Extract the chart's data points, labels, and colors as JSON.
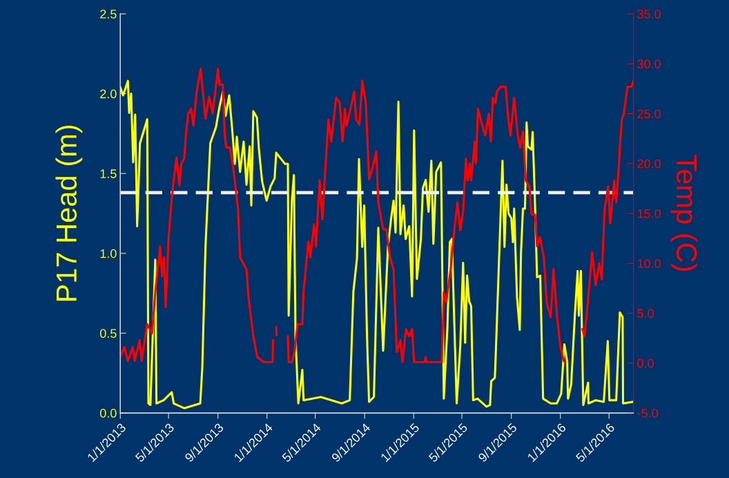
{
  "chart_data": {
    "type": "line",
    "ylabel": "P17 Head (m)",
    "y2label": "Temp (C)",
    "xlim": [
      "2013-01-01",
      "2016-07-01"
    ],
    "xticks": [
      {
        "value": "2013-01-01",
        "label": "1/1/2013"
      },
      {
        "value": "2013-05-01",
        "label": "5/1/2013"
      },
      {
        "value": "2013-09-01",
        "label": "9/1/2013"
      },
      {
        "value": "2014-01-01",
        "label": "1/1/2014"
      },
      {
        "value": "2014-05-01",
        "label": "5/1/2014"
      },
      {
        "value": "2014-09-01",
        "label": "9/1/2014"
      },
      {
        "value": "2015-01-01",
        "label": "1/1/2015"
      },
      {
        "value": "2015-05-01",
        "label": "5/1/2015"
      },
      {
        "value": "2015-09-01",
        "label": "9/1/2015"
      },
      {
        "value": "2016-01-01",
        "label": "1/1/2016"
      },
      {
        "value": "2016-05-01",
        "label": "5/1/2016"
      }
    ],
    "ylim": [
      0,
      2.5
    ],
    "yticks": [
      {
        "value": 0,
        "label": "0.0"
      },
      {
        "value": 0.5,
        "label": "0.5"
      },
      {
        "value": 1,
        "label": "1.0"
      },
      {
        "value": 1.5,
        "label": "1.5"
      },
      {
        "value": 2,
        "label": "2.0"
      },
      {
        "value": 2.5,
        "label": "2.5"
      }
    ],
    "y2lim": [
      -5,
      35
    ],
    "y2ticks": [
      {
        "value": -5,
        "label": "-5.0"
      },
      {
        "value": 0,
        "label": "0.0"
      },
      {
        "value": 5,
        "label": "5.0"
      },
      {
        "value": 10,
        "label": "10.0"
      },
      {
        "value": 15,
        "label": "15.0"
      },
      {
        "value": 20,
        "label": "20.0"
      },
      {
        "value": 25,
        "label": "25.0"
      },
      {
        "value": 30,
        "label": "30.0"
      },
      {
        "value": 35,
        "label": "35.0"
      }
    ],
    "grid": false,
    "marker": "none",
    "line_style": "solid",
    "ref_lines": [
      {
        "axis": "y",
        "value": 1.38,
        "label": null,
        "color": "#f0f0f0",
        "line_style": "dashed"
      }
    ],
    "series": [
      {
        "color": "#ffff00",
        "axis": "y",
        "x": [
          "2013-01-01",
          "2013-01-08",
          "2013-01-20",
          "2013-01-23",
          "2013-01-28",
          "2013-02-02",
          "2013-02-07",
          "2013-02-12",
          "2013-02-19",
          "2013-03-02",
          "2013-03-09",
          "2013-03-12",
          "2013-03-17",
          "2013-03-29",
          "2013-04-01",
          "2013-04-19",
          "2013-05-09",
          "2013-05-14",
          "2013-06-09",
          "2013-07-19",
          "2013-07-24",
          "2013-08-01",
          "2013-08-05",
          "2013-08-13",
          "2013-08-27",
          "2013-09-05",
          "2013-09-13",
          "2013-09-20",
          "2013-09-29",
          "2013-10-07",
          "2013-10-13",
          "2013-10-18",
          "2013-10-26",
          "2013-11-04",
          "2013-11-11",
          "2013-11-19",
          "2013-11-23",
          "2013-11-28",
          "2013-12-07",
          "2013-12-12",
          "2013-12-20",
          "2013-12-31",
          "2014-01-10",
          "2014-01-20",
          "2014-01-24",
          "2014-02-15",
          "2014-02-22",
          "2014-02-24",
          "2014-03-04",
          "2014-03-09",
          "2014-03-13",
          "2014-03-20",
          "2014-03-30",
          "2014-04-02",
          "2014-05-15",
          "2014-07-06",
          "2014-07-26",
          "2014-08-04",
          "2014-08-13",
          "2014-08-18",
          "2014-08-26",
          "2014-08-31",
          "2014-09-07",
          "2014-09-12",
          "2014-09-24",
          "2014-10-05",
          "2014-10-17",
          "2014-10-29",
          "2014-11-06",
          "2014-11-12",
          "2014-11-17",
          "2014-11-24",
          "2014-11-29",
          "2014-12-07",
          "2014-12-12",
          "2014-12-21",
          "2014-12-28",
          "2015-01-02",
          "2015-01-09",
          "2015-01-19",
          "2015-01-24",
          "2015-01-31",
          "2015-02-07",
          "2015-02-14",
          "2015-02-19",
          "2015-02-26",
          "2015-03-10",
          "2015-03-17",
          "2015-03-26",
          "2015-04-01",
          "2015-04-06",
          "2015-04-18",
          "2015-04-27",
          "2015-05-04",
          "2015-05-09",
          "2015-05-14",
          "2015-05-19",
          "2015-05-24",
          "2015-05-29",
          "2015-06-09",
          "2015-07-01",
          "2015-07-10",
          "2015-07-13",
          "2015-07-22",
          "2015-07-24",
          "2015-08-01",
          "2015-08-10",
          "2015-08-15",
          "2015-08-20",
          "2015-08-25",
          "2015-09-01",
          "2015-09-05",
          "2015-09-08",
          "2015-09-15",
          "2015-09-22",
          "2015-09-25",
          "2015-09-30",
          "2015-10-05",
          "2015-10-09",
          "2015-10-12",
          "2015-10-21",
          "2015-10-24",
          "2015-10-29",
          "2015-11-04",
          "2015-11-12",
          "2015-11-19",
          "2015-12-08",
          "2015-12-23",
          "2016-01-03",
          "2016-01-11",
          "2016-01-18",
          "2016-01-20",
          "2016-01-28",
          "2016-02-06",
          "2016-02-13",
          "2016-02-16",
          "2016-02-21",
          "2016-02-27",
          "2016-03-10",
          "2016-03-11",
          "2016-03-29",
          "2016-04-18",
          "2016-04-28",
          "2016-05-02",
          "2016-05-19",
          "2016-05-28",
          "2016-06-04",
          "2016-06-05",
          "2016-07-01"
        ],
        "values": [
          2.04,
          1.99,
          2.08,
          1.88,
          2.0,
          1.57,
          1.87,
          1.17,
          1.69,
          1.78,
          1.84,
          0.06,
          0.05,
          0.96,
          0.06,
          0.08,
          0.13,
          0.06,
          0.03,
          0.06,
          0.28,
          1.04,
          1.26,
          1.69,
          1.79,
          1.92,
          2.01,
          1.86,
          1.99,
          1.76,
          1.56,
          1.73,
          1.51,
          1.7,
          1.43,
          1.67,
          1.3,
          1.89,
          1.85,
          1.65,
          1.45,
          1.33,
          1.42,
          1.47,
          1.63,
          1.56,
          1.56,
          0.61,
          1.33,
          1.49,
          0.47,
          0.06,
          0.27,
          0.08,
          0.1,
          0.06,
          0.08,
          0.76,
          0.97,
          1.59,
          1.04,
          1.3,
          0.47,
          0.07,
          0.1,
          1.16,
          0.39,
          1.04,
          1.22,
          1.33,
          1.13,
          1.95,
          1.12,
          1.3,
          1.09,
          1.17,
          0.73,
          1.77,
          0.84,
          1.09,
          1.41,
          1.46,
          1.26,
          1.58,
          1.06,
          1.51,
          1.57,
          0.09,
          0.54,
          1.07,
          1.09,
          0.06,
          0.42,
          0.94,
          0.44,
          0.86,
          0.7,
          0.67,
          0.08,
          0.09,
          0.04,
          0.05,
          0.2,
          0.22,
          0.35,
          0.93,
          1.58,
          1.04,
          1.43,
          1.25,
          1.22,
          1.07,
          1.28,
          0.73,
          0.52,
          1.0,
          1.28,
          1.28,
          1.82,
          1.67,
          1.65,
          1.76,
          1.39,
          0.85,
          0.86,
          0.09,
          0.06,
          0.06,
          0.12,
          0.43,
          0.32,
          0.09,
          0.18,
          0.61,
          0.89,
          0.61,
          0.89,
          0.05,
          0.19,
          0.06,
          0.08,
          0.07,
          0.45,
          0.08,
          0.08,
          0.63,
          0.6,
          0.06,
          0.07
        ]
      },
      {
        "color": "#ff0000",
        "axis": "y2",
        "x": [
          "2013-01-01",
          "2013-01-11",
          "2013-01-20",
          "2013-02-01",
          "2013-02-06",
          "2013-02-18",
          "2013-02-23",
          "2013-03-09",
          "2013-03-21",
          "2013-03-29",
          "2013-04-10",
          "2013-04-15",
          "2013-04-20",
          "2013-04-24",
          "2013-05-01",
          "2013-05-08",
          "2013-05-14",
          "2013-05-21",
          "2013-05-28",
          "2013-06-02",
          "2013-06-09",
          "2013-06-14",
          "2013-06-19",
          "2013-06-26",
          "2013-07-02",
          "2013-07-10",
          "2013-07-20",
          "2013-08-01",
          "2013-08-10",
          "2013-08-19",
          "2013-09-01",
          "2013-09-05",
          "2013-09-13",
          "2013-09-18",
          "2013-09-22",
          "2013-10-01",
          "2013-10-09",
          "2013-10-21",
          "2013-10-26",
          "2013-11-11",
          "2013-11-16",
          "2013-11-28",
          "2013-12-08",
          "2013-12-24",
          "2014-01-15",
          "2014-01-16",
          "2014-01-20",
          "2014-01-24",
          "2014-01-25",
          "2014-02-01",
          "2014-02-22",
          "2014-02-24",
          "2014-03-04",
          "2014-03-11",
          "2014-03-18",
          "2014-03-30",
          "2014-04-02",
          "2014-04-14",
          "2014-04-19",
          "2014-04-28",
          "2014-05-03",
          "2014-05-12",
          "2014-05-19",
          "2014-05-27",
          "2014-06-03",
          "2014-06-10",
          "2014-06-22",
          "2014-07-01",
          "2014-07-08",
          "2014-07-14",
          "2014-07-18",
          "2014-07-28",
          "2014-08-06",
          "2014-08-11",
          "2014-08-19",
          "2014-08-26",
          "2014-09-04",
          "2014-09-12",
          "2014-09-21",
          "2014-09-30",
          "2014-10-05",
          "2014-10-17",
          "2014-10-25",
          "2014-11-03",
          "2014-11-12",
          "2014-11-20",
          "2014-11-29",
          "2014-12-04",
          "2014-12-13",
          "2014-12-21",
          "2014-12-28",
          "2015-01-02",
          "2015-01-28",
          "2015-01-31",
          "2015-02-02",
          "2015-03-12",
          "2015-03-17",
          "2015-03-23",
          "2015-04-03",
          "2015-04-12",
          "2015-04-20",
          "2015-04-27",
          "2015-05-04",
          "2015-05-11",
          "2015-05-16",
          "2015-05-21",
          "2015-05-24",
          "2015-06-02",
          "2015-06-05",
          "2015-06-10",
          "2015-06-17",
          "2015-06-28",
          "2015-07-07",
          "2015-07-12",
          "2015-07-17",
          "2015-07-24",
          "2015-07-27",
          "2015-08-05",
          "2015-08-18",
          "2015-08-24",
          "2015-08-30",
          "2015-09-08",
          "2015-09-17",
          "2015-09-23",
          "2015-09-30",
          "2015-10-07",
          "2015-10-16",
          "2015-10-21",
          "2015-10-30",
          "2015-11-04",
          "2015-11-11",
          "2015-11-21",
          "2015-11-28",
          "2015-12-08",
          "2015-12-15",
          "2015-12-24",
          "2016-01-01",
          "2016-01-10",
          "2016-01-13",
          "2016-01-20",
          "2016-02-25",
          "2016-03-01",
          "2016-03-06",
          "2016-03-15",
          "2016-03-20",
          "2016-03-29",
          "2016-04-07",
          "2016-04-13",
          "2016-04-20",
          "2016-04-29",
          "2016-05-04",
          "2016-05-14",
          "2016-05-19",
          "2016-05-26",
          "2016-05-28",
          "2016-06-02",
          "2016-06-07",
          "2016-06-16",
          "2016-06-26",
          "2016-07-01"
        ],
        "values": [
          0.6,
          1.6,
          0.2,
          1.6,
          0.2,
          2.3,
          0.2,
          3.9,
          3.0,
          7.1,
          11.7,
          8.7,
          10.6,
          5.6,
          12.4,
          16.1,
          18.4,
          20.6,
          17.8,
          20.0,
          20.5,
          23.2,
          25.0,
          25.5,
          23.8,
          27.2,
          29.5,
          24.5,
          26.7,
          25.0,
          29.5,
          27.9,
          27.9,
          22.8,
          21.6,
          21.6,
          19.6,
          15.4,
          10.6,
          9.4,
          6.6,
          2.7,
          0.6,
          0.1,
          0.1,
          2.3,
          null,
          3.6,
          2.8,
          null,
          2.7,
          0.1,
          0.1,
          1.2,
          3.9,
          3.9,
          7.1,
          12.2,
          10.6,
          13.9,
          11.7,
          18.3,
          14.4,
          20.0,
          24.4,
          22.2,
          26.6,
          26.1,
          22.2,
          25.5,
          23.8,
          25.5,
          27.2,
          24.4,
          23.9,
          28.3,
          26.1,
          18.4,
          19.6,
          21.2,
          16.1,
          13.4,
          13.4,
          10.6,
          9.4,
          1.1,
          2.3,
          0.1,
          3.4,
          2.7,
          3.4,
          0.1,
          0.1,
          0.6,
          0.1,
          0.1,
          7.1,
          6.1,
          9.4,
          13.3,
          16.1,
          13.3,
          15.1,
          20.5,
          18.3,
          20.0,
          18.3,
          22.2,
          20.0,
          25.5,
          24.4,
          22.8,
          25.0,
          22.2,
          26.6,
          26.1,
          27.2,
          27.7,
          27.7,
          24.6,
          22.8,
          26.6,
          22.8,
          21.6,
          23.2,
          18.3,
          17.7,
          14.9,
          14.9,
          11.7,
          12.6,
          10.6,
          6.1,
          4.6,
          9.4,
          4.6,
          1.6,
          0.2,
          0.1,
          null,
          3.4,
          2.7,
          4.6,
          8.7,
          11.1,
          7.8,
          10.0,
          8.4,
          15.4,
          17.7,
          14.0,
          18.3,
          16.1,
          20.0,
          21.6,
          24.4,
          25.0,
          27.7,
          27.7,
          28.3
        ]
      }
    ]
  }
}
